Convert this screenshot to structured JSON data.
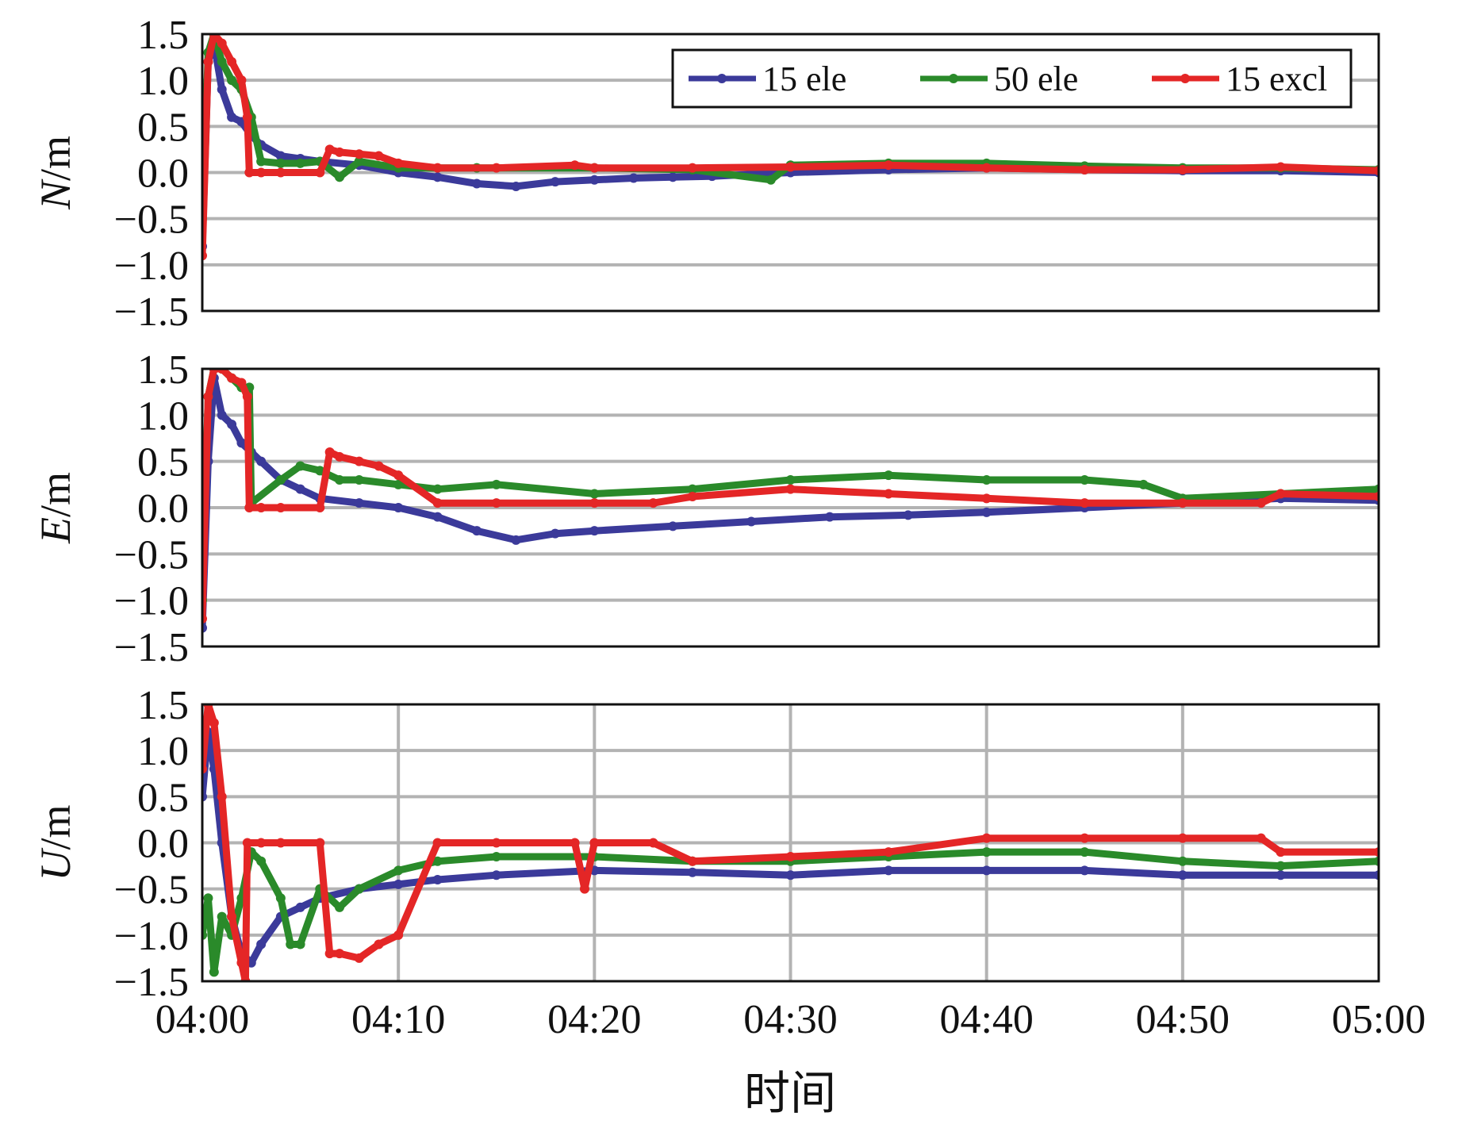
{
  "chart_data": {
    "type": "line",
    "xlabel": "时间",
    "x_ticks": [
      "04:00",
      "04:10",
      "04:20",
      "04:30",
      "04:40",
      "04:50",
      "05:00"
    ],
    "xlim": [
      "04:00",
      "05:00"
    ],
    "x_unit": "minutes after 04:00",
    "ylim": [
      -1.5,
      1.5
    ],
    "y_ticks": [
      "1.5",
      "1.0",
      "0.5",
      "0.0",
      "−0.5",
      "−1.0",
      "−1.5"
    ],
    "legend": {
      "position": "top-right",
      "entries": [
        {
          "name": "15 ele",
          "color": "#3b3a9a"
        },
        {
          "name": "50 ele",
          "color": "#2a8a2a"
        },
        {
          "name": "15 excl",
          "color": "#e42626"
        }
      ]
    },
    "panels": [
      {
        "ylabel_italic": "N",
        "ylabel_unit": "/m",
        "grid": "horizontal",
        "series": [
          {
            "name": "15 ele",
            "color": "#3b3a9a",
            "x": [
              0,
              0.3,
              0.6,
              1,
              1.5,
              2,
              2.5,
              3,
              4,
              5,
              6,
              8,
              10,
              12,
              14,
              16,
              18,
              20,
              22,
              24,
              26,
              28,
              30,
              35,
              40,
              45,
              50,
              55,
              60
            ],
            "y": [
              -0.8,
              1.2,
              1.4,
              0.9,
              0.6,
              0.55,
              0.4,
              0.3,
              0.18,
              0.15,
              0.12,
              0.08,
              0.0,
              -0.05,
              -0.12,
              -0.15,
              -0.1,
              -0.08,
              -0.06,
              -0.05,
              -0.04,
              -0.02,
              0.0,
              0.03,
              0.05,
              0.03,
              0.02,
              0.02,
              0.0
            ]
          },
          {
            "name": "50 ele",
            "color": "#2a8a2a",
            "x": [
              0,
              0.3,
              0.6,
              1,
              1.5,
              2,
              2.5,
              3,
              4,
              5,
              6,
              7,
              8,
              10,
              14,
              20,
              25,
              29,
              30,
              35,
              40,
              45,
              50,
              55,
              60
            ],
            "y": [
              -0.5,
              1.3,
              1.5,
              1.2,
              1.0,
              0.9,
              0.6,
              0.12,
              0.1,
              0.1,
              0.12,
              -0.05,
              0.12,
              0.05,
              0.05,
              0.05,
              0.03,
              -0.08,
              0.08,
              0.1,
              0.1,
              0.07,
              0.05,
              0.05,
              0.03
            ]
          },
          {
            "name": "15 excl",
            "color": "#e42626",
            "x": [
              0,
              0.3,
              0.6,
              1,
              1.5,
              2,
              2.3,
              2.4,
              3,
              4,
              6,
              6.5,
              7,
              8,
              9,
              10,
              12,
              15,
              19,
              20,
              25,
              30,
              35,
              40,
              45,
              50,
              55,
              60
            ],
            "y": [
              -0.9,
              1.2,
              1.5,
              1.4,
              1.2,
              1.0,
              0.6,
              0.0,
              0.0,
              0.0,
              0.0,
              0.25,
              0.22,
              0.2,
              0.18,
              0.1,
              0.05,
              0.05,
              0.08,
              0.05,
              0.05,
              0.06,
              0.08,
              0.05,
              0.03,
              0.03,
              0.06,
              0.02
            ]
          }
        ]
      },
      {
        "ylabel_italic": "E",
        "ylabel_unit": "/m",
        "grid": "horizontal",
        "series": [
          {
            "name": "15 ele",
            "color": "#3b3a9a",
            "x": [
              0,
              0.3,
              0.6,
              1,
              1.5,
              2,
              2.5,
              3,
              4,
              5,
              6,
              8,
              10,
              12,
              14,
              16,
              18,
              20,
              24,
              28,
              32,
              36,
              40,
              45,
              50,
              55,
              60
            ],
            "y": [
              -1.3,
              0.5,
              1.4,
              1.0,
              0.9,
              0.7,
              0.6,
              0.5,
              0.3,
              0.2,
              0.1,
              0.05,
              0.0,
              -0.1,
              -0.25,
              -0.35,
              -0.28,
              -0.25,
              -0.2,
              -0.15,
              -0.1,
              -0.08,
              -0.05,
              0.0,
              0.05,
              0.1,
              0.08
            ]
          },
          {
            "name": "50 ele",
            "color": "#2a8a2a",
            "x": [
              0,
              0.3,
              0.6,
              1,
              1.5,
              2,
              2.4,
              2.5,
              4,
              5,
              6,
              7,
              8,
              10,
              12,
              15,
              20,
              25,
              30,
              35,
              40,
              45,
              48,
              50,
              55,
              60
            ],
            "y": [
              -1.0,
              1.2,
              1.5,
              1.5,
              1.4,
              1.3,
              1.3,
              0.05,
              0.3,
              0.45,
              0.4,
              0.3,
              0.3,
              0.25,
              0.2,
              0.25,
              0.15,
              0.2,
              0.3,
              0.35,
              0.3,
              0.3,
              0.25,
              0.1,
              0.15,
              0.2
            ]
          },
          {
            "name": "15 excl",
            "color": "#e42626",
            "x": [
              0,
              0.3,
              0.6,
              1,
              1.5,
              2,
              2.3,
              2.4,
              3,
              4,
              6,
              6.5,
              7,
              8,
              9,
              10,
              12,
              15,
              20,
              23,
              25,
              30,
              35,
              40,
              45,
              50,
              54,
              55,
              60
            ],
            "y": [
              -1.2,
              1.2,
              1.5,
              1.5,
              1.4,
              1.35,
              1.2,
              0.0,
              0.0,
              0.0,
              0.0,
              0.6,
              0.55,
              0.5,
              0.45,
              0.35,
              0.05,
              0.05,
              0.05,
              0.05,
              0.12,
              0.2,
              0.15,
              0.1,
              0.05,
              0.05,
              0.05,
              0.15,
              0.12
            ]
          }
        ]
      },
      {
        "ylabel_italic": "U",
        "ylabel_unit": "/m",
        "grid": "both",
        "series": [
          {
            "name": "15 ele",
            "color": "#3b3a9a",
            "x": [
              0,
              0.3,
              0.6,
              1,
              1.5,
              2,
              2.5,
              3,
              4,
              5,
              6,
              8,
              10,
              12,
              15,
              20,
              25,
              30,
              35,
              40,
              45,
              50,
              55,
              60
            ],
            "y": [
              0.5,
              1.2,
              0.8,
              0.0,
              -0.8,
              -1.2,
              -1.3,
              -1.1,
              -0.8,
              -0.7,
              -0.6,
              -0.5,
              -0.45,
              -0.4,
              -0.35,
              -0.3,
              -0.32,
              -0.35,
              -0.3,
              -0.3,
              -0.3,
              -0.35,
              -0.35,
              -0.35
            ]
          },
          {
            "name": "50 ele",
            "color": "#2a8a2a",
            "x": [
              0,
              0.3,
              0.6,
              1,
              1.5,
              2,
              2.5,
              3,
              4,
              4.5,
              5,
              6,
              7,
              8,
              10,
              12,
              15,
              20,
              25,
              30,
              35,
              40,
              45,
              50,
              55,
              60
            ],
            "y": [
              -1.0,
              -0.6,
              -1.4,
              -0.8,
              -1.0,
              -0.6,
              -0.1,
              -0.2,
              -0.6,
              -1.1,
              -1.1,
              -0.5,
              -0.7,
              -0.5,
              -0.3,
              -0.2,
              -0.15,
              -0.15,
              -0.2,
              -0.2,
              -0.15,
              -0.1,
              -0.1,
              -0.2,
              -0.25,
              -0.2
            ]
          },
          {
            "name": "15 excl",
            "color": "#e42626",
            "x": [
              0,
              0.3,
              0.6,
              1,
              1.5,
              2,
              2.2,
              2.3,
              3,
              4,
              6,
              6.5,
              7,
              8,
              9,
              10,
              12,
              15,
              19,
              19.5,
              20,
              23,
              25,
              30,
              35,
              40,
              45,
              50,
              54,
              55,
              60
            ],
            "y": [
              0.8,
              1.5,
              1.3,
              0.5,
              -0.8,
              -1.3,
              -1.5,
              0.0,
              0.0,
              0.0,
              0.0,
              -1.2,
              -1.2,
              -1.25,
              -1.1,
              -1.0,
              0.0,
              0.0,
              0.0,
              -0.5,
              0.0,
              0.0,
              -0.2,
              -0.15,
              -0.1,
              0.05,
              0.05,
              0.05,
              0.05,
              -0.1,
              -0.1
            ]
          }
        ]
      }
    ]
  }
}
